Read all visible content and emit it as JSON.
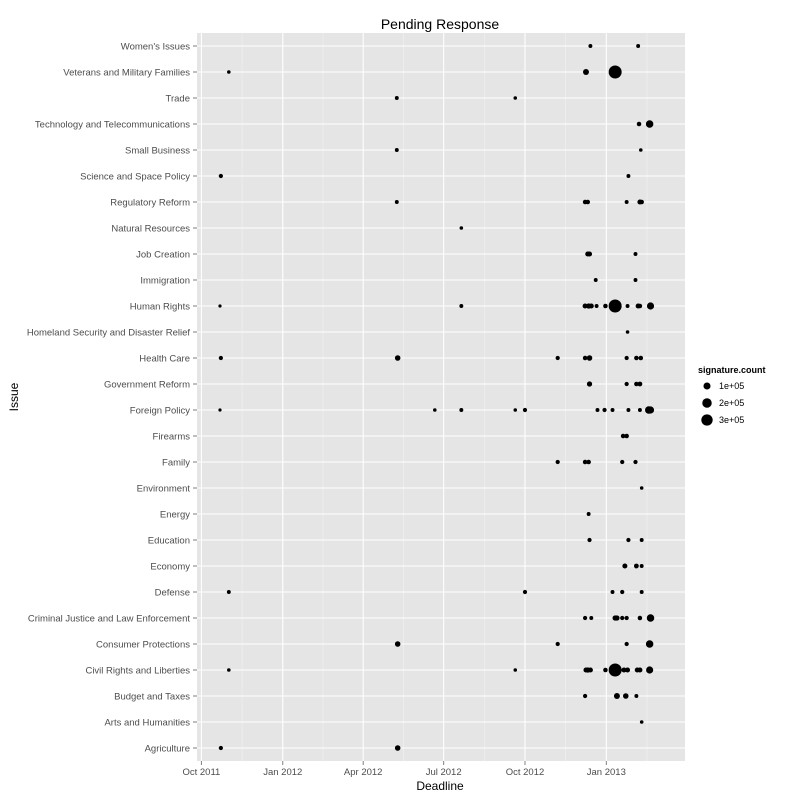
{
  "chart_data": {
    "type": "scatter",
    "title": "Pending Response",
    "xlabel": "Deadline",
    "ylabel": "Issue",
    "x_axis": {
      "type": "date",
      "range": [
        "2011-09-26",
        "2013-03-31"
      ],
      "ticks": [
        {
          "date": "2011-10-01",
          "label": "Oct 2011"
        },
        {
          "date": "2012-01-01",
          "label": "Jan 2012"
        },
        {
          "date": "2012-04-01",
          "label": "Apr 2012"
        },
        {
          "date": "2012-07-01",
          "label": "Jul 2012"
        },
        {
          "date": "2012-10-01",
          "label": "Oct 2012"
        },
        {
          "date": "2013-01-01",
          "label": "Jan 2013"
        }
      ]
    },
    "categories": [
      "Agriculture",
      "Arts and Humanities",
      "Budget and Taxes",
      "Civil Rights and Liberties",
      "Consumer Protections",
      "Criminal Justice and Law Enforcement",
      "Defense",
      "Economy",
      "Education",
      "Energy",
      "Environment",
      "Family",
      "Firearms",
      "Foreign Policy",
      "Government Reform",
      "Health Care",
      "Homeland Security and Disaster Relief",
      "Human Rights",
      "Immigration",
      "Job Creation",
      "Natural Resources",
      "Regulatory Reform",
      "Science and Space Policy",
      "Small Business",
      "Technology and Telecommunications",
      "Trade",
      "Veterans and Military Families",
      "Women's Issues"
    ],
    "legend": {
      "title": "signature.count",
      "placement": "right",
      "entries": [
        {
          "label": "1e+05",
          "value": 100000
        },
        {
          "label": "2e+05",
          "value": 200000
        },
        {
          "label": "3e+05",
          "value": 300000
        }
      ]
    },
    "points": [
      {
        "issue": "Women's Issues",
        "date": "2012-12-14",
        "signatures": 30000
      },
      {
        "issue": "Women's Issues",
        "date": "2013-02-06",
        "signatures": 30000
      },
      {
        "issue": "Veterans and Military Families",
        "date": "2011-11-01",
        "signatures": 25000
      },
      {
        "issue": "Veterans and Military Families",
        "date": "2012-12-09",
        "signatures": 70000
      },
      {
        "issue": "Veterans and Military Families",
        "date": "2013-01-11",
        "signatures": 330000
      },
      {
        "issue": "Trade",
        "date": "2012-05-09",
        "signatures": 30000
      },
      {
        "issue": "Trade",
        "date": "2012-09-20",
        "signatures": 25000
      },
      {
        "issue": "Technology and Telecommunications",
        "date": "2013-02-07",
        "signatures": 40000
      },
      {
        "issue": "Technology and Telecommunications",
        "date": "2013-02-19",
        "signatures": 110000
      },
      {
        "issue": "Small Business",
        "date": "2012-05-09",
        "signatures": 30000
      },
      {
        "issue": "Small Business",
        "date": "2013-02-09",
        "signatures": 25000
      },
      {
        "issue": "Science and Space Policy",
        "date": "2011-10-23",
        "signatures": 35000
      },
      {
        "issue": "Science and Space Policy",
        "date": "2013-01-26",
        "signatures": 30000
      },
      {
        "issue": "Natural Resources",
        "date": "2012-07-21",
        "signatures": 25000
      },
      {
        "issue": "Regulatory Reform",
        "date": "2012-05-09",
        "signatures": 30000
      },
      {
        "issue": "Regulatory Reform",
        "date": "2012-12-08",
        "signatures": 40000
      },
      {
        "issue": "Regulatory Reform",
        "date": "2012-12-11",
        "signatures": 40000
      },
      {
        "issue": "Regulatory Reform",
        "date": "2013-01-24",
        "signatures": 30000
      },
      {
        "issue": "Regulatory Reform",
        "date": "2013-02-08",
        "signatures": 50000
      },
      {
        "issue": "Regulatory Reform",
        "date": "2013-02-10",
        "signatures": 40000
      },
      {
        "issue": "Job Creation",
        "date": "2012-12-11",
        "signatures": 50000
      },
      {
        "issue": "Job Creation",
        "date": "2012-12-13",
        "signatures": 50000
      },
      {
        "issue": "Job Creation",
        "date": "2013-02-03",
        "signatures": 30000
      },
      {
        "issue": "Immigration",
        "date": "2012-12-20",
        "signatures": 30000
      },
      {
        "issue": "Immigration",
        "date": "2013-02-03",
        "signatures": 30000
      },
      {
        "issue": "Human Rights",
        "date": "2011-10-22",
        "signatures": 20000
      },
      {
        "issue": "Human Rights",
        "date": "2012-07-21",
        "signatures": 30000
      },
      {
        "issue": "Human Rights",
        "date": "2012-12-08",
        "signatures": 50000
      },
      {
        "issue": "Human Rights",
        "date": "2012-12-12",
        "signatures": 55000
      },
      {
        "issue": "Human Rights",
        "date": "2012-12-15",
        "signatures": 50000
      },
      {
        "issue": "Human Rights",
        "date": "2012-12-21",
        "signatures": 30000
      },
      {
        "issue": "Human Rights",
        "date": "2012-12-31",
        "signatures": 40000
      },
      {
        "issue": "Human Rights",
        "date": "2013-01-11",
        "signatures": 330000
      },
      {
        "issue": "Human Rights",
        "date": "2013-01-25",
        "signatures": 30000
      },
      {
        "issue": "Human Rights",
        "date": "2013-02-06",
        "signatures": 50000
      },
      {
        "issue": "Human Rights",
        "date": "2013-02-08",
        "signatures": 40000
      },
      {
        "issue": "Human Rights",
        "date": "2013-02-20",
        "signatures": 100000
      },
      {
        "issue": "Homeland Security and Disaster Relief",
        "date": "2013-01-25",
        "signatures": 25000
      },
      {
        "issue": "Health Care",
        "date": "2011-10-23",
        "signatures": 35000
      },
      {
        "issue": "Health Care",
        "date": "2012-05-10",
        "signatures": 60000
      },
      {
        "issue": "Health Care",
        "date": "2012-11-07",
        "signatures": 35000
      },
      {
        "issue": "Health Care",
        "date": "2012-12-08",
        "signatures": 40000
      },
      {
        "issue": "Health Care",
        "date": "2012-12-13",
        "signatures": 60000
      },
      {
        "issue": "Health Care",
        "date": "2013-01-24",
        "signatures": 35000
      },
      {
        "issue": "Health Care",
        "date": "2013-02-04",
        "signatures": 40000
      },
      {
        "issue": "Health Care",
        "date": "2013-02-09",
        "signatures": 40000
      },
      {
        "issue": "Government Reform",
        "date": "2012-12-13",
        "signatures": 55000
      },
      {
        "issue": "Government Reform",
        "date": "2013-01-24",
        "signatures": 35000
      },
      {
        "issue": "Government Reform",
        "date": "2013-02-04",
        "signatures": 40000
      },
      {
        "issue": "Government Reform",
        "date": "2013-02-08",
        "signatures": 45000
      },
      {
        "issue": "Foreign Policy",
        "date": "2011-10-22",
        "signatures": 20000
      },
      {
        "issue": "Foreign Policy",
        "date": "2012-06-21",
        "signatures": 25000
      },
      {
        "issue": "Foreign Policy",
        "date": "2012-07-21",
        "signatures": 30000
      },
      {
        "issue": "Foreign Policy",
        "date": "2012-09-20",
        "signatures": 25000
      },
      {
        "issue": "Foreign Policy",
        "date": "2012-10-01",
        "signatures": 35000
      },
      {
        "issue": "Foreign Policy",
        "date": "2012-12-22",
        "signatures": 30000
      },
      {
        "issue": "Foreign Policy",
        "date": "2012-12-30",
        "signatures": 35000
      },
      {
        "issue": "Foreign Policy",
        "date": "2013-01-08",
        "signatures": 30000
      },
      {
        "issue": "Foreign Policy",
        "date": "2013-01-26",
        "signatures": 30000
      },
      {
        "issue": "Foreign Policy",
        "date": "2013-02-08",
        "signatures": 30000
      },
      {
        "issue": "Foreign Policy",
        "date": "2013-02-18",
        "signatures": 110000
      },
      {
        "issue": "Foreign Policy",
        "date": "2013-02-20",
        "signatures": 100000
      },
      {
        "issue": "Firearms",
        "date": "2013-01-20",
        "signatures": 40000
      },
      {
        "issue": "Firearms",
        "date": "2013-01-24",
        "signatures": 40000
      },
      {
        "issue": "Family",
        "date": "2012-11-07",
        "signatures": 35000
      },
      {
        "issue": "Family",
        "date": "2012-12-08",
        "signatures": 40000
      },
      {
        "issue": "Family",
        "date": "2012-12-12",
        "signatures": 40000
      },
      {
        "issue": "Family",
        "date": "2013-01-19",
        "signatures": 35000
      },
      {
        "issue": "Family",
        "date": "2013-02-03",
        "signatures": 35000
      },
      {
        "issue": "Environment",
        "date": "2013-02-10",
        "signatures": 25000
      },
      {
        "issue": "Energy",
        "date": "2012-12-12",
        "signatures": 30000
      },
      {
        "issue": "Education",
        "date": "2012-12-13",
        "signatures": 35000
      },
      {
        "issue": "Education",
        "date": "2013-01-26",
        "signatures": 35000
      },
      {
        "issue": "Education",
        "date": "2013-02-10",
        "signatures": 30000
      },
      {
        "issue": "Economy",
        "date": "2013-01-22",
        "signatures": 50000
      },
      {
        "issue": "Economy",
        "date": "2013-02-04",
        "signatures": 45000
      },
      {
        "issue": "Economy",
        "date": "2013-02-10",
        "signatures": 30000
      },
      {
        "issue": "Defense",
        "date": "2011-11-01",
        "signatures": 30000
      },
      {
        "issue": "Defense",
        "date": "2012-10-01",
        "signatures": 35000
      },
      {
        "issue": "Defense",
        "date": "2013-01-08",
        "signatures": 30000
      },
      {
        "issue": "Defense",
        "date": "2013-01-19",
        "signatures": 35000
      },
      {
        "issue": "Defense",
        "date": "2013-02-10",
        "signatures": 30000
      },
      {
        "issue": "Criminal Justice and Law Enforcement",
        "date": "2012-12-08",
        "signatures": 35000
      },
      {
        "issue": "Criminal Justice and Law Enforcement",
        "date": "2012-12-15",
        "signatures": 30000
      },
      {
        "issue": "Criminal Justice and Law Enforcement",
        "date": "2013-01-11",
        "signatures": 55000
      },
      {
        "issue": "Criminal Justice and Law Enforcement",
        "date": "2013-01-13",
        "signatures": 55000
      },
      {
        "issue": "Criminal Justice and Law Enforcement",
        "date": "2013-01-19",
        "signatures": 35000
      },
      {
        "issue": "Criminal Justice and Law Enforcement",
        "date": "2013-01-24",
        "signatures": 35000
      },
      {
        "issue": "Criminal Justice and Law Enforcement",
        "date": "2013-02-08",
        "signatures": 40000
      },
      {
        "issue": "Criminal Justice and Law Enforcement",
        "date": "2013-02-20",
        "signatures": 110000
      },
      {
        "issue": "Consumer Protections",
        "date": "2012-05-10",
        "signatures": 60000
      },
      {
        "issue": "Consumer Protections",
        "date": "2012-11-07",
        "signatures": 35000
      },
      {
        "issue": "Consumer Protections",
        "date": "2013-01-24",
        "signatures": 35000
      },
      {
        "issue": "Consumer Protections",
        "date": "2013-02-19",
        "signatures": 110000
      },
      {
        "issue": "Civil Rights and Liberties",
        "date": "2011-11-01",
        "signatures": 25000
      },
      {
        "issue": "Civil Rights and Liberties",
        "date": "2012-09-20",
        "signatures": 25000
      },
      {
        "issue": "Civil Rights and Liberties",
        "date": "2012-12-09",
        "signatures": 50000
      },
      {
        "issue": "Civil Rights and Liberties",
        "date": "2012-12-11",
        "signatures": 55000
      },
      {
        "issue": "Civil Rights and Liberties",
        "date": "2012-12-14",
        "signatures": 50000
      },
      {
        "issue": "Civil Rights and Liberties",
        "date": "2012-12-31",
        "signatures": 40000
      },
      {
        "issue": "Civil Rights and Liberties",
        "date": "2013-01-11",
        "signatures": 330000
      },
      {
        "issue": "Civil Rights and Liberties",
        "date": "2013-01-21",
        "signatures": 50000
      },
      {
        "issue": "Civil Rights and Liberties",
        "date": "2013-01-25",
        "signatures": 50000
      },
      {
        "issue": "Civil Rights and Liberties",
        "date": "2013-02-05",
        "signatures": 50000
      },
      {
        "issue": "Civil Rights and Liberties",
        "date": "2013-02-08",
        "signatures": 50000
      },
      {
        "issue": "Civil Rights and Liberties",
        "date": "2013-02-19",
        "signatures": 100000
      },
      {
        "issue": "Budget and Taxes",
        "date": "2012-12-08",
        "signatures": 35000
      },
      {
        "issue": "Budget and Taxes",
        "date": "2013-01-13",
        "signatures": 70000
      },
      {
        "issue": "Budget and Taxes",
        "date": "2013-01-23",
        "signatures": 60000
      },
      {
        "issue": "Budget and Taxes",
        "date": "2013-02-04",
        "signatures": 30000
      },
      {
        "issue": "Arts and Humanities",
        "date": "2013-02-10",
        "signatures": 25000
      },
      {
        "issue": "Agriculture",
        "date": "2011-10-23",
        "signatures": 35000
      },
      {
        "issue": "Agriculture",
        "date": "2012-05-10",
        "signatures": 60000
      }
    ]
  }
}
